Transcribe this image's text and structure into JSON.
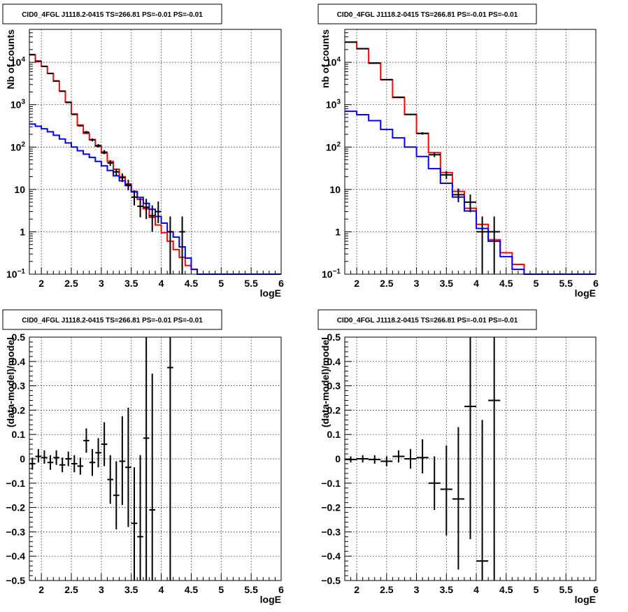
{
  "chart_data": [
    {
      "type": "line",
      "title": "CID0_4FGL J1118.2-0415 TS=266.81 PS=-0.01 PS=-0.01",
      "xlabel": "logE",
      "ylabel": "Nb of counts",
      "xlim": [
        1.8,
        6.0
      ],
      "ylim": [
        0.1,
        60000
      ],
      "yscale": "log",
      "x_ticks": [
        "2",
        "2.5",
        "3",
        "3.5",
        "4",
        "4.5",
        "5",
        "5.5",
        "6"
      ],
      "y_ticks": [
        "10^{-1}",
        "1",
        "10",
        "10^{2}",
        "10^{3}",
        "10^{4}"
      ],
      "grid": true,
      "series": [
        {
          "color": "#ff0000",
          "edges": [
            1.8,
            1.9,
            2.0,
            2.1,
            2.2,
            2.3,
            2.4,
            2.5,
            2.6,
            2.7,
            2.8,
            2.9,
            3.0,
            3.1,
            3.2,
            3.3,
            3.4,
            3.5,
            3.6,
            3.7,
            3.8,
            3.9,
            4.0,
            4.1,
            4.2,
            4.3,
            4.4,
            4.5,
            4.6,
            4.7,
            4.8,
            4.9,
            5.0,
            5.1,
            5.2,
            5.3,
            5.4,
            5.5,
            5.6,
            5.7,
            5.8,
            5.9,
            6.0
          ],
          "values": [
            15000,
            10500,
            8000,
            5500,
            3600,
            2100,
            1150,
            600,
            330,
            210,
            150,
            105,
            72,
            46,
            30,
            20,
            13.5,
            9,
            5.8,
            3.5,
            2.2,
            1.45,
            0.95,
            0.6,
            0.38,
            0.25,
            0.16,
            0.13,
            0.1,
            0.1,
            0.1,
            0.1,
            0.1,
            0.1,
            0.1,
            0.1,
            0.1,
            0.1,
            0.1,
            0.1,
            0.1,
            0.1
          ]
        },
        {
          "color": "#0000ff",
          "edges": [
            1.8,
            1.9,
            2.0,
            2.1,
            2.2,
            2.3,
            2.4,
            2.5,
            2.6,
            2.7,
            2.8,
            2.9,
            3.0,
            3.1,
            3.2,
            3.3,
            3.4,
            3.5,
            3.6,
            3.7,
            3.8,
            3.9,
            4.0,
            4.1,
            4.2,
            4.3,
            4.4,
            4.5,
            4.6,
            4.7,
            4.8,
            4.9,
            5.0,
            5.1,
            5.2,
            5.3,
            5.4,
            5.5,
            5.6,
            5.7,
            5.8,
            5.9,
            6.0
          ],
          "values": [
            350,
            310,
            270,
            230,
            190,
            155,
            125,
            100,
            82,
            68,
            57,
            46,
            36,
            28,
            21,
            16,
            12.3,
            8.7,
            6.5,
            4.7,
            3.4,
            2.3,
            1.6,
            1.0,
            0.75,
            0.44,
            0.24,
            0.13,
            0.1,
            0.1,
            0.1,
            0.1,
            0.1,
            0.1,
            0.1,
            0.1,
            0.1,
            0.1,
            0.1,
            0.1,
            0.1,
            0.1
          ]
        },
        {
          "color": "#000000",
          "style": "errorbar",
          "points": [
            {
              "x": 1.85,
              "xe": 0.05,
              "y": 15300,
              "lo": 15100,
              "hi": 15500
            },
            {
              "x": 1.95,
              "xe": 0.05,
              "y": 10700,
              "lo": 10500,
              "hi": 10900
            },
            {
              "x": 2.05,
              "xe": 0.05,
              "y": 8050,
              "lo": 7900,
              "hi": 8200
            },
            {
              "x": 2.15,
              "xe": 0.05,
              "y": 5450,
              "lo": 5350,
              "hi": 5550
            },
            {
              "x": 2.25,
              "xe": 0.05,
              "y": 3640,
              "lo": 3560,
              "hi": 3720
            },
            {
              "x": 2.35,
              "xe": 0.05,
              "y": 2080,
              "lo": 2030,
              "hi": 2130
            },
            {
              "x": 2.45,
              "xe": 0.05,
              "y": 1130,
              "lo": 1100,
              "hi": 1160
            },
            {
              "x": 2.55,
              "xe": 0.05,
              "y": 590,
              "lo": 570,
              "hi": 610
            },
            {
              "x": 2.65,
              "xe": 0.05,
              "y": 320,
              "lo": 305,
              "hi": 335
            },
            {
              "x": 2.75,
              "xe": 0.05,
              "y": 225,
              "lo": 210,
              "hi": 240
            },
            {
              "x": 2.85,
              "xe": 0.05,
              "y": 148,
              "lo": 136,
              "hi": 160
            },
            {
              "x": 2.95,
              "xe": 0.05,
              "y": 108,
              "lo": 98,
              "hi": 118
            },
            {
              "x": 3.05,
              "xe": 0.05,
              "y": 76,
              "lo": 68,
              "hi": 85
            },
            {
              "x": 3.15,
              "xe": 0.05,
              "y": 42,
              "lo": 36,
              "hi": 49
            },
            {
              "x": 3.25,
              "xe": 0.05,
              "y": 26,
              "lo": 21,
              "hi": 31
            },
            {
              "x": 3.35,
              "xe": 0.05,
              "y": 19,
              "lo": 15,
              "hi": 24
            },
            {
              "x": 3.45,
              "xe": 0.05,
              "y": 13,
              "lo": 9.5,
              "hi": 17
            },
            {
              "x": 3.55,
              "xe": 0.05,
              "y": 6.6,
              "lo": 4.2,
              "hi": 9.5
            },
            {
              "x": 3.65,
              "xe": 0.05,
              "y": 4.0,
              "lo": 2.2,
              "hi": 6.2
            },
            {
              "x": 3.75,
              "xe": 0.05,
              "y": 3.8,
              "lo": 2.0,
              "hi": 6.0
            },
            {
              "x": 3.85,
              "xe": 0.05,
              "y": 2.4,
              "lo": 1.0,
              "hi": 4.2
            },
            {
              "x": 3.95,
              "xe": 0.05,
              "y": 3.0,
              "lo": 1.6,
              "hi": 5.2
            },
            {
              "x": 4.15,
              "xe": 0.05,
              "y": 1.0,
              "lo": 0.1,
              "hi": 2.3
            },
            {
              "x": 4.35,
              "xe": 0.05,
              "y": 1.0,
              "lo": 0.1,
              "hi": 2.3
            }
          ]
        }
      ]
    },
    {
      "type": "line",
      "title": "CID0_4FGL J1118.2-0415 TS=266.81 PS=-0.01 PS=-0.01",
      "xlabel": "logE",
      "ylabel": "nb of counts",
      "xlim": [
        1.8,
        6.0
      ],
      "ylim": [
        0.1,
        60000
      ],
      "yscale": "log",
      "x_ticks": [
        "2",
        "2.5",
        "3",
        "3.5",
        "4",
        "4.5",
        "5",
        "5.5",
        "6"
      ],
      "y_ticks": [
        "10^{-1}",
        "1",
        "10",
        "10^{2}",
        "10^{3}",
        "10^{4}"
      ],
      "grid": true,
      "series": [
        {
          "color": "#ff0000",
          "edges": [
            1.8,
            2.0,
            2.2,
            2.4,
            2.6,
            2.8,
            3.0,
            3.2,
            3.4,
            3.6,
            3.8,
            4.0,
            4.2,
            4.4,
            4.6,
            4.8,
            5.0,
            5.2,
            5.4,
            5.6,
            5.8,
            6.0
          ],
          "values": [
            30000,
            21000,
            9600,
            3900,
            1480,
            590,
            210,
            74,
            25,
            9,
            3.6,
            1.5,
            0.65,
            0.32,
            0.17,
            0.1,
            0.1,
            0.1,
            0.1,
            0.1,
            0.1
          ]
        },
        {
          "color": "#0000ff",
          "edges": [
            1.8,
            2.0,
            2.2,
            2.4,
            2.6,
            2.8,
            3.0,
            3.2,
            3.4,
            3.6,
            3.8,
            4.0,
            4.2,
            4.4,
            4.6,
            4.8,
            5.0,
            5.2,
            5.4,
            5.6,
            5.8,
            6.0
          ],
          "values": [
            700,
            580,
            420,
            260,
            165,
            100,
            60,
            31,
            14,
            6.6,
            3.1,
            1.2,
            0.6,
            0.26,
            0.13,
            0.1,
            0.1,
            0.1,
            0.1,
            0.1,
            0.1
          ]
        },
        {
          "color": "#000000",
          "style": "errorbar",
          "points": [
            {
              "x": 1.9,
              "xe": 0.1,
              "y": 30000,
              "lo": 29800,
              "hi": 30200
            },
            {
              "x": 2.1,
              "xe": 0.1,
              "y": 21000,
              "lo": 20800,
              "hi": 21200
            },
            {
              "x": 2.3,
              "xe": 0.1,
              "y": 9600,
              "lo": 9450,
              "hi": 9750
            },
            {
              "x": 2.5,
              "xe": 0.1,
              "y": 3900,
              "lo": 3800,
              "hi": 4000
            },
            {
              "x": 2.7,
              "xe": 0.1,
              "y": 1500,
              "lo": 1440,
              "hi": 1560
            },
            {
              "x": 2.9,
              "xe": 0.1,
              "y": 590,
              "lo": 565,
              "hi": 615
            },
            {
              "x": 3.1,
              "xe": 0.1,
              "y": 210,
              "lo": 196,
              "hi": 225
            },
            {
              "x": 3.3,
              "xe": 0.1,
              "y": 66,
              "lo": 58,
              "hi": 74
            },
            {
              "x": 3.5,
              "xe": 0.1,
              "y": 22,
              "lo": 17.5,
              "hi": 27
            },
            {
              "x": 3.7,
              "xe": 0.1,
              "y": 7.5,
              "lo": 5.0,
              "hi": 10.5
            },
            {
              "x": 3.9,
              "xe": 0.1,
              "y": 5.0,
              "lo": 2.9,
              "hi": 7.6
            },
            {
              "x": 4.1,
              "xe": 0.1,
              "y": 1.0,
              "lo": 0.1,
              "hi": 2.3
            },
            {
              "x": 4.3,
              "xe": 0.1,
              "y": 1.0,
              "lo": 0.1,
              "hi": 2.3
            }
          ]
        }
      ]
    },
    {
      "type": "scatter",
      "title": "CID0_4FGL J1118.2-0415 TS=266.81 PS=-0.01 PS=-0.01",
      "xlabel": "logE",
      "ylabel": "(data-model)/model",
      "xlim": [
        1.8,
        6.0
      ],
      "ylim": [
        -0.5,
        0.5
      ],
      "x_ticks": [
        "2",
        "2.5",
        "3",
        "3.5",
        "4",
        "4.5",
        "5",
        "5.5",
        "6"
      ],
      "y_ticks": [
        "−0.5",
        "−0.4",
        "−0.3",
        "−0.2",
        "−0.1",
        "0",
        "0.1",
        "0.2",
        "0.3",
        "0.4",
        "0.5"
      ],
      "grid": true,
      "series": [
        {
          "color": "#000000",
          "style": "errorbar",
          "points": [
            {
              "x": 1.85,
              "xe": 0.05,
              "y": -0.02,
              "lo": -0.045,
              "hi": 0.005
            },
            {
              "x": 1.95,
              "xe": 0.05,
              "y": 0.01,
              "lo": -0.015,
              "hi": 0.04
            },
            {
              "x": 2.05,
              "xe": 0.05,
              "y": 0.005,
              "lo": -0.02,
              "hi": 0.035
            },
            {
              "x": 2.15,
              "xe": 0.05,
              "y": -0.015,
              "lo": -0.045,
              "hi": 0.015
            },
            {
              "x": 2.25,
              "xe": 0.05,
              "y": 0.005,
              "lo": -0.025,
              "hi": 0.035
            },
            {
              "x": 2.35,
              "xe": 0.05,
              "y": -0.025,
              "lo": -0.055,
              "hi": 0.005
            },
            {
              "x": 2.45,
              "xe": 0.05,
              "y": 0.0,
              "lo": -0.03,
              "hi": 0.03
            },
            {
              "x": 2.55,
              "xe": 0.05,
              "y": -0.02,
              "lo": -0.055,
              "hi": 0.015
            },
            {
              "x": 2.65,
              "xe": 0.05,
              "y": -0.03,
              "lo": -0.065,
              "hi": 0.005
            },
            {
              "x": 2.75,
              "xe": 0.05,
              "y": 0.075,
              "lo": 0.025,
              "hi": 0.125
            },
            {
              "x": 2.85,
              "xe": 0.05,
              "y": -0.015,
              "lo": -0.07,
              "hi": 0.04
            },
            {
              "x": 2.95,
              "xe": 0.05,
              "y": 0.025,
              "lo": -0.035,
              "hi": 0.085
            },
            {
              "x": 3.05,
              "xe": 0.05,
              "y": 0.06,
              "lo": -0.03,
              "hi": 0.15
            },
            {
              "x": 3.15,
              "xe": 0.05,
              "y": -0.085,
              "lo": -0.185,
              "hi": 0.015
            },
            {
              "x": 3.25,
              "xe": 0.05,
              "y": -0.15,
              "lo": -0.29,
              "hi": -0.01
            },
            {
              "x": 3.35,
              "xe": 0.05,
              "y": -0.01,
              "lo": -0.19,
              "hi": 0.175
            },
            {
              "x": 3.45,
              "xe": 0.05,
              "y": -0.035,
              "lo": -0.28,
              "hi": 0.21
            },
            {
              "x": 3.55,
              "xe": 0.05,
              "y": -0.265,
              "lo": -0.5,
              "hi": -0.035
            },
            {
              "x": 3.65,
              "xe": 0.05,
              "y": -0.32,
              "lo": -0.5,
              "hi": 0.015
            },
            {
              "x": 3.75,
              "xe": 0.05,
              "y": 0.085,
              "lo": -0.5,
              "hi": 0.5
            },
            {
              "x": 3.85,
              "xe": 0.05,
              "y": -0.21,
              "lo": -0.5,
              "hi": 0.35
            },
            {
              "x": 4.15,
              "xe": 0.05,
              "y": 0.375,
              "lo": -0.5,
              "hi": 0.5
            }
          ]
        }
      ]
    },
    {
      "type": "scatter",
      "title": "CID0_4FGL J1118.2-0415 TS=266.81 PS=-0.01 PS=-0.01",
      "xlabel": "logE",
      "ylabel": "(data-model)/model",
      "xlim": [
        1.8,
        6.0
      ],
      "ylim": [
        -0.5,
        0.5
      ],
      "x_ticks": [
        "2",
        "2.5",
        "3",
        "3.5",
        "4",
        "4.5",
        "5",
        "5.5",
        "6"
      ],
      "y_ticks": [
        "−0.5",
        "−0.4",
        "−0.3",
        "−0.2",
        "−0.1",
        "0",
        "0.1",
        "0.2",
        "0.3",
        "0.4",
        "0.5"
      ],
      "grid": true,
      "series": [
        {
          "color": "#000000",
          "style": "errorbar",
          "points": [
            {
              "x": 1.9,
              "xe": 0.1,
              "y": -0.003,
              "lo": -0.015,
              "hi": 0.01
            },
            {
              "x": 2.1,
              "xe": 0.1,
              "y": 0.0,
              "lo": -0.015,
              "hi": 0.015
            },
            {
              "x": 2.3,
              "xe": 0.1,
              "y": -0.003,
              "lo": -0.02,
              "hi": 0.015
            },
            {
              "x": 2.5,
              "xe": 0.1,
              "y": -0.01,
              "lo": -0.03,
              "hi": 0.01
            },
            {
              "x": 2.7,
              "xe": 0.1,
              "y": 0.01,
              "lo": -0.015,
              "hi": 0.035
            },
            {
              "x": 2.9,
              "xe": 0.1,
              "y": 0.0,
              "lo": -0.04,
              "hi": 0.04
            },
            {
              "x": 3.1,
              "xe": 0.1,
              "y": 0.005,
              "lo": -0.06,
              "hi": 0.08
            },
            {
              "x": 3.3,
              "xe": 0.1,
              "y": -0.1,
              "lo": -0.21,
              "hi": 0.01
            },
            {
              "x": 3.5,
              "xe": 0.1,
              "y": -0.125,
              "lo": -0.315,
              "hi": 0.055
            },
            {
              "x": 3.7,
              "xe": 0.1,
              "y": -0.165,
              "lo": -0.455,
              "hi": 0.13
            },
            {
              "x": 3.9,
              "xe": 0.1,
              "y": 0.215,
              "lo": -0.33,
              "hi": 0.5
            },
            {
              "x": 4.1,
              "xe": 0.1,
              "y": -0.42,
              "lo": -0.5,
              "hi": 0.16
            },
            {
              "x": 4.3,
              "xe": 0.1,
              "y": 0.24,
              "lo": -0.5,
              "hi": 0.5
            }
          ]
        }
      ]
    }
  ]
}
